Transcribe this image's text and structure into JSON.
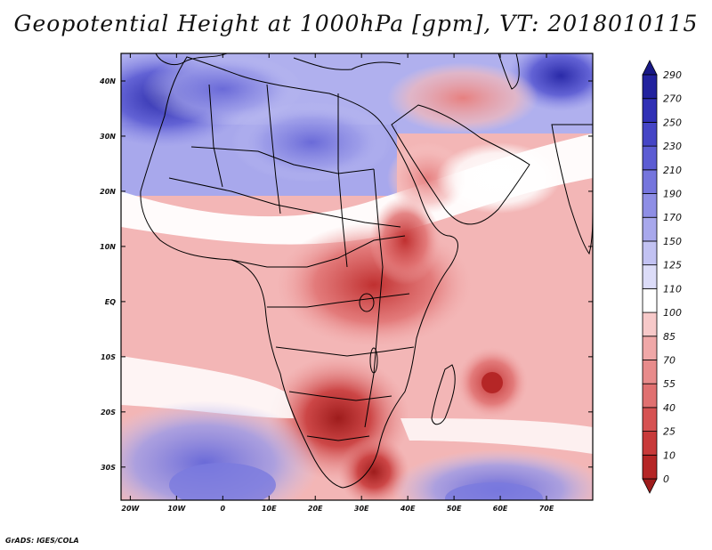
{
  "title": "Geopotential Height at 1000hPa [gpm], VT: 2018010115",
  "credit": "GrADS: IGES/COLA",
  "map": {
    "variable": "Geopotential Height",
    "level": "1000hPa",
    "units": "gpm",
    "valid_time": "2018010115",
    "lon_range": [
      -22,
      80
    ],
    "lat_range": [
      -36,
      45
    ],
    "lon_ticks": [
      {
        "value": -20,
        "label": "20W"
      },
      {
        "value": -10,
        "label": "10W"
      },
      {
        "value": 0,
        "label": "0"
      },
      {
        "value": 10,
        "label": "10E"
      },
      {
        "value": 20,
        "label": "20E"
      },
      {
        "value": 30,
        "label": "30E"
      },
      {
        "value": 40,
        "label": "40E"
      },
      {
        "value": 50,
        "label": "50E"
      },
      {
        "value": 60,
        "label": "60E"
      },
      {
        "value": 70,
        "label": "70E"
      }
    ],
    "lat_ticks": [
      {
        "value": 40,
        "label": "40N"
      },
      {
        "value": 30,
        "label": "30N"
      },
      {
        "value": 20,
        "label": "20N"
      },
      {
        "value": 10,
        "label": "10N"
      },
      {
        "value": 0,
        "label": "EQ"
      },
      {
        "value": -10,
        "label": "10S"
      },
      {
        "value": -20,
        "label": "20S"
      },
      {
        "value": -30,
        "label": "30S"
      }
    ]
  },
  "colorbar": {
    "levels": [
      0,
      10,
      25,
      40,
      55,
      70,
      85,
      100,
      110,
      125,
      150,
      170,
      190,
      210,
      230,
      250,
      270,
      290
    ],
    "labels": [
      "0",
      "10",
      "25",
      "40",
      "55",
      "70",
      "85",
      "100",
      "110",
      "125",
      "150",
      "170",
      "190",
      "210",
      "230",
      "250",
      "270",
      "290"
    ],
    "colors": [
      "#9e1c1c",
      "#b52626",
      "#c83a3a",
      "#d65252",
      "#e07070",
      "#e88b8b",
      "#f0a8a8",
      "#f7c9c9",
      "#ffffff",
      "#dcdcf8",
      "#c2c2f2",
      "#a8a8ec",
      "#8e8ee5",
      "#7575dd",
      "#5c5cd3",
      "#4545c6",
      "#3030b5",
      "#22229e",
      "#181885"
    ]
  }
}
